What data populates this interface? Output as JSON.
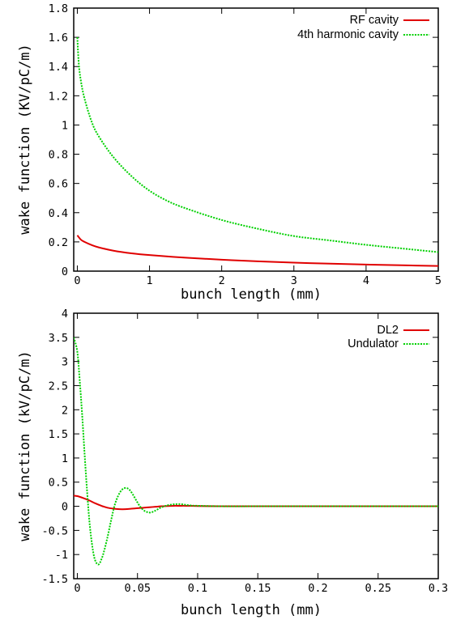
{
  "chart_data": [
    {
      "type": "line",
      "title": "",
      "xlabel": "bunch length (mm)",
      "ylabel": "wake function (KV/pC/m)",
      "xlim": [
        -0.05,
        5
      ],
      "ylim": [
        0,
        1.8
      ],
      "x_ticks": [
        0,
        1,
        2,
        3,
        4,
        5
      ],
      "x_tick_labels": [
        "0",
        "1",
        "2",
        "3",
        "4",
        "5"
      ],
      "y_ticks": [
        0,
        0.2,
        0.4,
        0.6,
        0.8,
        1,
        1.2,
        1.4,
        1.6,
        1.8
      ],
      "y_tick_labels": [
        "0",
        "0.2",
        "0.4",
        "0.6",
        "0.8",
        "1",
        "1.2",
        "1.4",
        "1.6",
        "1.8"
      ],
      "grid": false,
      "legend_position": "top-right",
      "series": [
        {
          "name": "RF cavity",
          "color": "#e00000",
          "style": "solid",
          "x": [
            0,
            0.05,
            0.1,
            0.2,
            0.3,
            0.5,
            0.75,
            1.0,
            1.5,
            2.0,
            2.5,
            3.0,
            3.5,
            4.0,
            4.5,
            5.0
          ],
          "y": [
            0.245,
            0.215,
            0.2,
            0.178,
            0.162,
            0.14,
            0.122,
            0.11,
            0.092,
            0.078,
            0.067,
            0.058,
            0.051,
            0.045,
            0.04,
            0.035
          ]
        },
        {
          "name": "4th harmonic cavity",
          "color": "#00d000",
          "style": "dotted",
          "x": [
            0,
            0.02,
            0.05,
            0.1,
            0.2,
            0.3,
            0.5,
            0.75,
            1.0,
            1.25,
            1.5,
            2.0,
            2.5,
            3.0,
            3.5,
            4.0,
            4.5,
            5.0
          ],
          "y": [
            1.6,
            1.42,
            1.3,
            1.18,
            1.02,
            0.92,
            0.78,
            0.65,
            0.55,
            0.48,
            0.43,
            0.35,
            0.29,
            0.24,
            0.21,
            0.18,
            0.155,
            0.13
          ]
        }
      ]
    },
    {
      "type": "line",
      "title": "",
      "xlabel": "bunch length (mm)",
      "ylabel": "wake function (kV/pC/m)",
      "xlim": [
        -0.003,
        0.3
      ],
      "ylim": [
        -1.5,
        4
      ],
      "x_ticks": [
        0,
        0.05,
        0.1,
        0.15,
        0.2,
        0.25,
        0.3
      ],
      "x_tick_labels": [
        "0",
        "0.05",
        "0.1",
        "0.15",
        "0.2",
        "0.25",
        "0.3"
      ],
      "y_ticks": [
        -1.5,
        -1,
        -0.5,
        0,
        0.5,
        1,
        1.5,
        2,
        2.5,
        3,
        3.5,
        4
      ],
      "y_tick_labels": [
        "-1.5",
        "-1",
        "-0.5",
        "0",
        "0.5",
        "1",
        "1.5",
        "2",
        "2.5",
        "3",
        "3.5",
        "4"
      ],
      "grid": false,
      "legend_position": "top-right",
      "series": [
        {
          "name": "DL2",
          "color": "#e00000",
          "style": "solid",
          "x": [
            -0.003,
            0,
            0.005,
            0.01,
            0.015,
            0.02,
            0.025,
            0.03,
            0.035,
            0.04,
            0.045,
            0.05,
            0.055,
            0.06,
            0.065,
            0.07,
            0.075,
            0.08,
            0.085,
            0.09,
            0.1,
            0.12,
            0.15,
            0.2,
            0.25,
            0.3
          ],
          "y": [
            0.22,
            0.21,
            0.17,
            0.12,
            0.06,
            0.01,
            -0.03,
            -0.05,
            -0.06,
            -0.06,
            -0.05,
            -0.04,
            -0.03,
            -0.02,
            -0.01,
            0.0,
            0.005,
            0.01,
            0.01,
            0.01,
            0.005,
            0.0,
            0.0,
            0.0,
            0.0,
            0.0
          ]
        },
        {
          "name": "Undulator",
          "color": "#00d000",
          "style": "dotted",
          "x": [
            -0.003,
            0,
            0.002,
            0.004,
            0.006,
            0.008,
            0.01,
            0.012,
            0.014,
            0.016,
            0.018,
            0.02,
            0.022,
            0.025,
            0.028,
            0.031,
            0.034,
            0.037,
            0.04,
            0.043,
            0.046,
            0.049,
            0.052,
            0.055,
            0.058,
            0.061,
            0.064,
            0.067,
            0.07,
            0.075,
            0.08,
            0.085,
            0.09,
            0.095,
            0.1,
            0.12,
            0.15,
            0.2,
            0.25,
            0.3
          ],
          "y": [
            3.5,
            3.2,
            2.6,
            1.9,
            1.1,
            0.35,
            -0.3,
            -0.75,
            -1.05,
            -1.18,
            -1.2,
            -1.1,
            -0.95,
            -0.65,
            -0.3,
            0.02,
            0.22,
            0.34,
            0.38,
            0.35,
            0.25,
            0.12,
            0.0,
            -0.08,
            -0.12,
            -0.13,
            -0.1,
            -0.06,
            -0.02,
            0.02,
            0.04,
            0.045,
            0.03,
            0.015,
            0.01,
            0.0,
            0.0,
            0.0,
            0.0,
            0.0
          ]
        }
      ]
    }
  ]
}
